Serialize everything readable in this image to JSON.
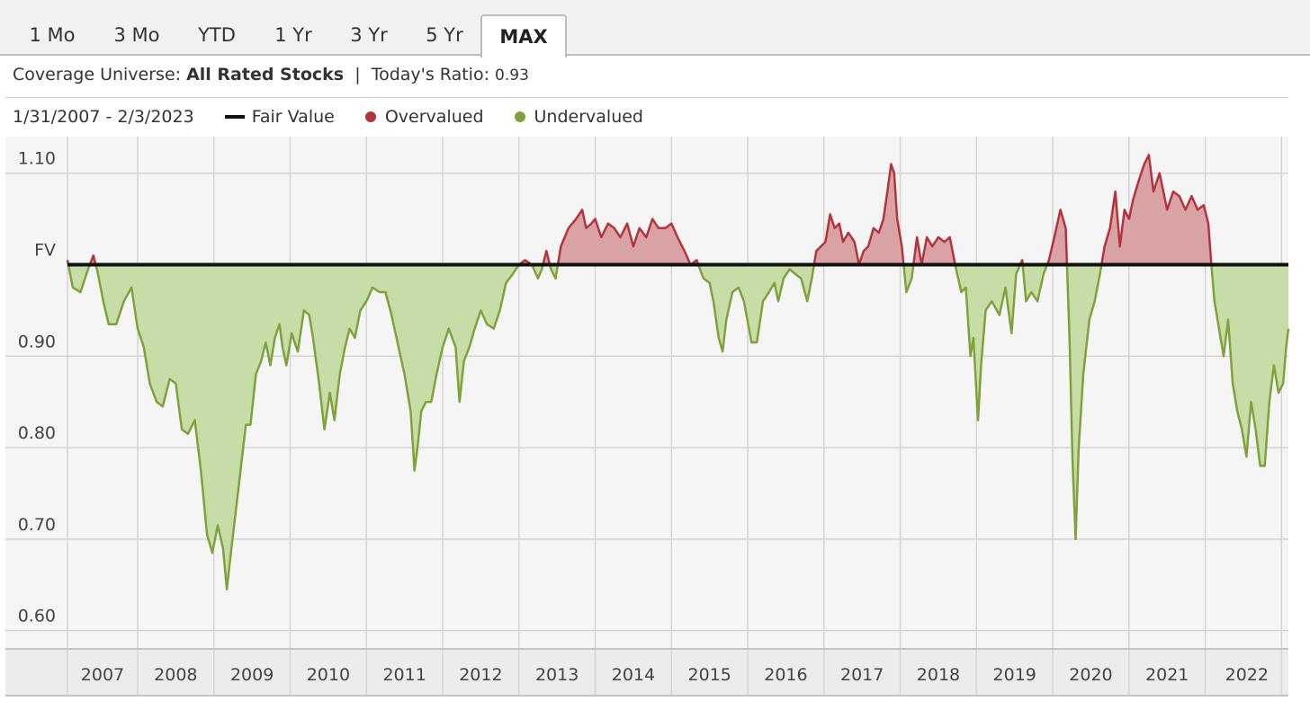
{
  "tabs": [
    {
      "label": "1 Mo",
      "active": false
    },
    {
      "label": "3 Mo",
      "active": false
    },
    {
      "label": "YTD",
      "active": false
    },
    {
      "label": "1 Yr",
      "active": false
    },
    {
      "label": "3 Yr",
      "active": false
    },
    {
      "label": "5 Yr",
      "active": false
    },
    {
      "label": "MAX",
      "active": true
    }
  ],
  "info": {
    "universe_label": "Coverage Universe:",
    "universe_value": "All Rated Stocks",
    "separator": "|",
    "ratio_label": "Today's Ratio:",
    "ratio_value": "0.93"
  },
  "legend": {
    "date_range": "1/31/2007 - 2/3/2023",
    "fair_value": "Fair Value",
    "overvalued": "Overvalued",
    "undervalued": "Undervalued"
  },
  "colors": {
    "overvalued_line": "#b3343a",
    "overvalued_fill": "#d9a2a5",
    "undervalued_line": "#7ea33a",
    "undervalued_fill": "#c8dca8",
    "fair_value_line": "#111111",
    "grid": "#d4d4d4",
    "plot_bg": "#f5f5f5"
  },
  "chart_data": {
    "type": "area",
    "baseline": 1.0,
    "baseline_label": "FV",
    "ylim": [
      0.58,
      1.14
    ],
    "y_ticks": [
      {
        "value": 1.1,
        "label": "1.10"
      },
      {
        "value": 0.9,
        "label": "0.90"
      },
      {
        "value": 0.8,
        "label": "0.80"
      },
      {
        "value": 0.7,
        "label": "0.70"
      },
      {
        "value": 0.6,
        "label": "0.60"
      }
    ],
    "xlim": [
      2007.08,
      2023.09
    ],
    "x_ticks": [
      "2007",
      "2008",
      "2009",
      "2010",
      "2011",
      "2012",
      "2013",
      "2014",
      "2015",
      "2016",
      "2017",
      "2018",
      "2019",
      "2020",
      "2021",
      "2022"
    ],
    "series": [
      {
        "points": [
          [
            2007.08,
            1.005
          ],
          [
            2007.15,
            0.975
          ],
          [
            2007.25,
            0.97
          ],
          [
            2007.35,
            0.995
          ],
          [
            2007.42,
            1.01
          ],
          [
            2007.48,
            0.99
          ],
          [
            2007.55,
            0.96
          ],
          [
            2007.62,
            0.935
          ],
          [
            2007.72,
            0.935
          ],
          [
            2007.82,
            0.96
          ],
          [
            2007.92,
            0.975
          ],
          [
            2008.0,
            0.93
          ],
          [
            2008.08,
            0.91
          ],
          [
            2008.16,
            0.87
          ],
          [
            2008.25,
            0.85
          ],
          [
            2008.33,
            0.845
          ],
          [
            2008.42,
            0.875
          ],
          [
            2008.5,
            0.87
          ],
          [
            2008.58,
            0.82
          ],
          [
            2008.66,
            0.815
          ],
          [
            2008.75,
            0.83
          ],
          [
            2008.83,
            0.775
          ],
          [
            2008.91,
            0.705
          ],
          [
            2008.98,
            0.685
          ],
          [
            2009.05,
            0.715
          ],
          [
            2009.12,
            0.69
          ],
          [
            2009.17,
            0.645
          ],
          [
            2009.23,
            0.69
          ],
          [
            2009.3,
            0.74
          ],
          [
            2009.37,
            0.79
          ],
          [
            2009.42,
            0.825
          ],
          [
            2009.48,
            0.825
          ],
          [
            2009.55,
            0.88
          ],
          [
            2009.62,
            0.895
          ],
          [
            2009.68,
            0.915
          ],
          [
            2009.74,
            0.89
          ],
          [
            2009.8,
            0.92
          ],
          [
            2009.86,
            0.935
          ],
          [
            2009.9,
            0.91
          ],
          [
            2009.95,
            0.89
          ],
          [
            2010.02,
            0.925
          ],
          [
            2010.1,
            0.905
          ],
          [
            2010.18,
            0.95
          ],
          [
            2010.25,
            0.945
          ],
          [
            2010.3,
            0.92
          ],
          [
            2010.38,
            0.87
          ],
          [
            2010.45,
            0.82
          ],
          [
            2010.52,
            0.86
          ],
          [
            2010.58,
            0.83
          ],
          [
            2010.65,
            0.88
          ],
          [
            2010.72,
            0.91
          ],
          [
            2010.78,
            0.93
          ],
          [
            2010.85,
            0.92
          ],
          [
            2010.92,
            0.95
          ],
          [
            2011.0,
            0.96
          ],
          [
            2011.08,
            0.975
          ],
          [
            2011.17,
            0.97
          ],
          [
            2011.25,
            0.97
          ],
          [
            2011.33,
            0.945
          ],
          [
            2011.42,
            0.91
          ],
          [
            2011.5,
            0.88
          ],
          [
            2011.58,
            0.84
          ],
          [
            2011.63,
            0.775
          ],
          [
            2011.67,
            0.8
          ],
          [
            2011.72,
            0.84
          ],
          [
            2011.78,
            0.85
          ],
          [
            2011.85,
            0.85
          ],
          [
            2011.92,
            0.88
          ],
          [
            2012.0,
            0.91
          ],
          [
            2012.08,
            0.93
          ],
          [
            2012.17,
            0.91
          ],
          [
            2012.22,
            0.85
          ],
          [
            2012.28,
            0.895
          ],
          [
            2012.35,
            0.91
          ],
          [
            2012.42,
            0.93
          ],
          [
            2012.5,
            0.95
          ],
          [
            2012.58,
            0.935
          ],
          [
            2012.67,
            0.93
          ],
          [
            2012.75,
            0.95
          ],
          [
            2012.83,
            0.98
          ],
          [
            2012.92,
            0.99
          ],
          [
            2013.0,
            1.0
          ],
          [
            2013.08,
            1.005
          ],
          [
            2013.17,
            1.0
          ],
          [
            2013.25,
            0.985
          ],
          [
            2013.3,
            0.995
          ],
          [
            2013.36,
            1.015
          ],
          [
            2013.42,
            0.995
          ],
          [
            2013.48,
            0.985
          ],
          [
            2013.55,
            1.02
          ],
          [
            2013.65,
            1.04
          ],
          [
            2013.75,
            1.05
          ],
          [
            2013.83,
            1.06
          ],
          [
            2013.88,
            1.04
          ],
          [
            2013.95,
            1.045
          ],
          [
            2014.0,
            1.05
          ],
          [
            2014.08,
            1.03
          ],
          [
            2014.17,
            1.045
          ],
          [
            2014.25,
            1.04
          ],
          [
            2014.33,
            1.03
          ],
          [
            2014.42,
            1.045
          ],
          [
            2014.5,
            1.02
          ],
          [
            2014.58,
            1.04
          ],
          [
            2014.67,
            1.03
          ],
          [
            2014.75,
            1.05
          ],
          [
            2014.83,
            1.04
          ],
          [
            2014.92,
            1.04
          ],
          [
            2015.0,
            1.045
          ],
          [
            2015.08,
            1.03
          ],
          [
            2015.17,
            1.015
          ],
          [
            2015.25,
            1.0
          ],
          [
            2015.33,
            1.005
          ],
          [
            2015.42,
            0.985
          ],
          [
            2015.5,
            0.98
          ],
          [
            2015.55,
            0.96
          ],
          [
            2015.62,
            0.92
          ],
          [
            2015.67,
            0.905
          ],
          [
            2015.72,
            0.94
          ],
          [
            2015.8,
            0.97
          ],
          [
            2015.88,
            0.975
          ],
          [
            2015.95,
            0.96
          ],
          [
            2016.05,
            0.915
          ],
          [
            2016.12,
            0.915
          ],
          [
            2016.2,
            0.96
          ],
          [
            2016.28,
            0.97
          ],
          [
            2016.35,
            0.98
          ],
          [
            2016.4,
            0.96
          ],
          [
            2016.47,
            0.985
          ],
          [
            2016.55,
            0.995
          ],
          [
            2016.62,
            0.99
          ],
          [
            2016.7,
            0.985
          ],
          [
            2016.78,
            0.96
          ],
          [
            2016.84,
            0.985
          ],
          [
            2016.9,
            1.015
          ],
          [
            2016.96,
            1.02
          ],
          [
            2017.02,
            1.025
          ],
          [
            2017.08,
            1.055
          ],
          [
            2017.14,
            1.04
          ],
          [
            2017.2,
            1.045
          ],
          [
            2017.25,
            1.025
          ],
          [
            2017.32,
            1.035
          ],
          [
            2017.4,
            1.025
          ],
          [
            2017.46,
            1.0
          ],
          [
            2017.52,
            1.015
          ],
          [
            2017.58,
            1.02
          ],
          [
            2017.65,
            1.04
          ],
          [
            2017.72,
            1.035
          ],
          [
            2017.78,
            1.05
          ],
          [
            2017.84,
            1.085
          ],
          [
            2017.88,
            1.11
          ],
          [
            2017.92,
            1.1
          ],
          [
            2017.96,
            1.05
          ],
          [
            2018.02,
            1.02
          ],
          [
            2018.08,
            0.97
          ],
          [
            2018.15,
            0.985
          ],
          [
            2018.22,
            1.03
          ],
          [
            2018.28,
            1.0
          ],
          [
            2018.35,
            1.03
          ],
          [
            2018.42,
            1.02
          ],
          [
            2018.5,
            1.03
          ],
          [
            2018.58,
            1.025
          ],
          [
            2018.65,
            1.03
          ],
          [
            2018.72,
            1.0
          ],
          [
            2018.8,
            0.97
          ],
          [
            2018.86,
            0.975
          ],
          [
            2018.92,
            0.9
          ],
          [
            2018.96,
            0.92
          ],
          [
            2019.02,
            0.83
          ],
          [
            2019.06,
            0.89
          ],
          [
            2019.12,
            0.95
          ],
          [
            2019.2,
            0.96
          ],
          [
            2019.3,
            0.945
          ],
          [
            2019.38,
            0.975
          ],
          [
            2019.46,
            0.925
          ],
          [
            2019.52,
            0.99
          ],
          [
            2019.6,
            1.005
          ],
          [
            2019.65,
            0.96
          ],
          [
            2019.72,
            0.97
          ],
          [
            2019.8,
            0.96
          ],
          [
            2019.88,
            0.99
          ],
          [
            2019.95,
            1.005
          ],
          [
            2020.02,
            1.03
          ],
          [
            2020.1,
            1.06
          ],
          [
            2020.17,
            1.04
          ],
          [
            2020.22,
            0.92
          ],
          [
            2020.26,
            0.785
          ],
          [
            2020.3,
            0.7
          ],
          [
            2020.34,
            0.8
          ],
          [
            2020.4,
            0.88
          ],
          [
            2020.48,
            0.94
          ],
          [
            2020.55,
            0.96
          ],
          [
            2020.62,
            0.99
          ],
          [
            2020.68,
            1.02
          ],
          [
            2020.75,
            1.04
          ],
          [
            2020.82,
            1.08
          ],
          [
            2020.88,
            1.02
          ],
          [
            2020.94,
            1.06
          ],
          [
            2021.0,
            1.05
          ],
          [
            2021.05,
            1.07
          ],
          [
            2021.12,
            1.09
          ],
          [
            2021.2,
            1.11
          ],
          [
            2021.26,
            1.12
          ],
          [
            2021.32,
            1.08
          ],
          [
            2021.4,
            1.1
          ],
          [
            2021.5,
            1.06
          ],
          [
            2021.58,
            1.08
          ],
          [
            2021.66,
            1.075
          ],
          [
            2021.74,
            1.06
          ],
          [
            2021.82,
            1.075
          ],
          [
            2021.9,
            1.06
          ],
          [
            2021.98,
            1.065
          ],
          [
            2022.04,
            1.045
          ],
          [
            2022.08,
            1.0
          ],
          [
            2022.12,
            0.96
          ],
          [
            2022.18,
            0.93
          ],
          [
            2022.24,
            0.9
          ],
          [
            2022.3,
            0.94
          ],
          [
            2022.36,
            0.87
          ],
          [
            2022.42,
            0.84
          ],
          [
            2022.48,
            0.82
          ],
          [
            2022.54,
            0.79
          ],
          [
            2022.6,
            0.85
          ],
          [
            2022.66,
            0.82
          ],
          [
            2022.72,
            0.78
          ],
          [
            2022.78,
            0.78
          ],
          [
            2022.84,
            0.85
          ],
          [
            2022.9,
            0.89
          ],
          [
            2022.96,
            0.86
          ],
          [
            2023.02,
            0.87
          ],
          [
            2023.06,
            0.91
          ],
          [
            2023.09,
            0.93
          ]
        ]
      }
    ]
  }
}
